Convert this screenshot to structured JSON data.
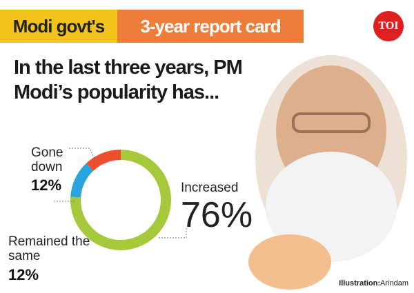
{
  "header": {
    "tag": "Modi govt's",
    "title": "3-year report card",
    "logo": "TOI"
  },
  "chart_data": {
    "type": "donut",
    "title": "In the last three years, PM Modi’s popularity has...",
    "categories": [
      "Increased",
      "Remained the same",
      "Gone down"
    ],
    "values": [
      76,
      12,
      12
    ],
    "value_labels": [
      "76%",
      "12%",
      "12%"
    ],
    "colors": [
      "#a6c93c",
      "#2aa4de",
      "#ee4d2e"
    ]
  },
  "credit": {
    "label": "Illustration:",
    "name": "Arindam"
  }
}
